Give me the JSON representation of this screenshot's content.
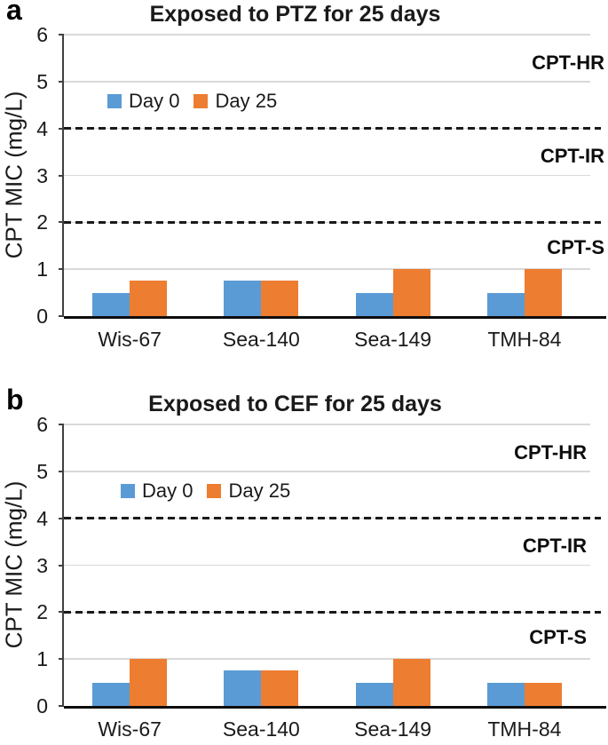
{
  "colors": {
    "day0": "#5B9BD5",
    "day25": "#ED7D31",
    "gridline": "#D9D9D9",
    "axis_left": "#404040",
    "axis_bottom": "#0D0D0D",
    "threshold_dash": "#1A1A1A",
    "text": "#1A1A1A",
    "background": "#FFFFFF"
  },
  "chart_data": [
    {
      "type": "bar",
      "panel_label": "a",
      "title": "Exposed to PTZ for 25 days",
      "ylabel": "CPT MIC (mg/L)",
      "xlabel": "",
      "ylim": [
        0,
        6
      ],
      "yticks": [
        0,
        1,
        2,
        3,
        4,
        5,
        6
      ],
      "grid": true,
      "legend_position": "inside-top-left",
      "categories": [
        "Wis-67",
        "Sea-140",
        "Sea-149",
        "TMH-84"
      ],
      "series": [
        {
          "name": "Day 0",
          "color": "#5B9BD5",
          "values": [
            0.5,
            0.75,
            0.5,
            0.5
          ]
        },
        {
          "name": "Day 25",
          "color": "#ED7D31",
          "values": [
            0.75,
            0.75,
            1.0,
            1.0
          ]
        }
      ],
      "thresholds": [
        {
          "value": 4,
          "style": "dashed"
        },
        {
          "value": 2,
          "style": "dashed"
        }
      ],
      "zone_labels": [
        {
          "label": "CPT-HR",
          "y": 5.4
        },
        {
          "label": "CPT-IR",
          "y": 3.4
        },
        {
          "label": "CPT-S",
          "y": 1.45
        }
      ]
    },
    {
      "type": "bar",
      "panel_label": "b",
      "title": "Exposed to CEF for 25 days",
      "ylabel": "CPT MIC (mg/L)",
      "xlabel": "",
      "ylim": [
        0,
        6
      ],
      "yticks": [
        0,
        1,
        2,
        3,
        4,
        5,
        6
      ],
      "grid": true,
      "legend_position": "inside-top-left",
      "categories": [
        "Wis-67",
        "Sea-140",
        "Sea-149",
        "TMH-84"
      ],
      "series": [
        {
          "name": "Day 0",
          "color": "#5B9BD5",
          "values": [
            0.5,
            0.75,
            0.5,
            0.5
          ]
        },
        {
          "name": "Day 25",
          "color": "#ED7D31",
          "values": [
            1.0,
            0.75,
            1.0,
            0.5
          ]
        }
      ],
      "thresholds": [
        {
          "value": 4,
          "style": "dashed"
        },
        {
          "value": 2,
          "style": "dashed"
        }
      ],
      "zone_labels": [
        {
          "label": "CPT-HR",
          "y": 5.4
        },
        {
          "label": "CPT-IR",
          "y": 3.4
        },
        {
          "label": "CPT-S",
          "y": 1.45
        }
      ]
    }
  ]
}
